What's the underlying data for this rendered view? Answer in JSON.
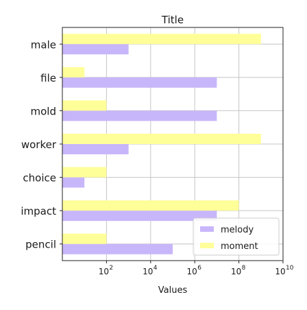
{
  "chart_data": {
    "type": "bar",
    "orientation": "horizontal",
    "title": "Title",
    "xlabel": "Values",
    "ylabel": "",
    "x_scale": "log",
    "xlim": [
      1,
      10000000000
    ],
    "x_ticks": [
      {
        "value": 100,
        "base": "10",
        "exp": "2"
      },
      {
        "value": 10000,
        "base": "10",
        "exp": "4"
      },
      {
        "value": 1000000,
        "base": "10",
        "exp": "6"
      },
      {
        "value": 100000000,
        "base": "10",
        "exp": "8"
      },
      {
        "value": 10000000000,
        "base": "10",
        "exp": "10"
      }
    ],
    "categories": [
      "male",
      "file",
      "mold",
      "worker",
      "choice",
      "impact",
      "pencil"
    ],
    "series": [
      {
        "name": "melody",
        "color": "#c8b6fa",
        "values": [
          1000,
          10000000,
          10000000,
          1000,
          10,
          10000000,
          100000
        ]
      },
      {
        "name": "moment",
        "color": "#ffff99",
        "values": [
          1000000000,
          10,
          100,
          1000000000,
          100,
          100000000,
          100
        ]
      }
    ],
    "grid": true,
    "legend": {
      "position": "bottom-right"
    }
  }
}
